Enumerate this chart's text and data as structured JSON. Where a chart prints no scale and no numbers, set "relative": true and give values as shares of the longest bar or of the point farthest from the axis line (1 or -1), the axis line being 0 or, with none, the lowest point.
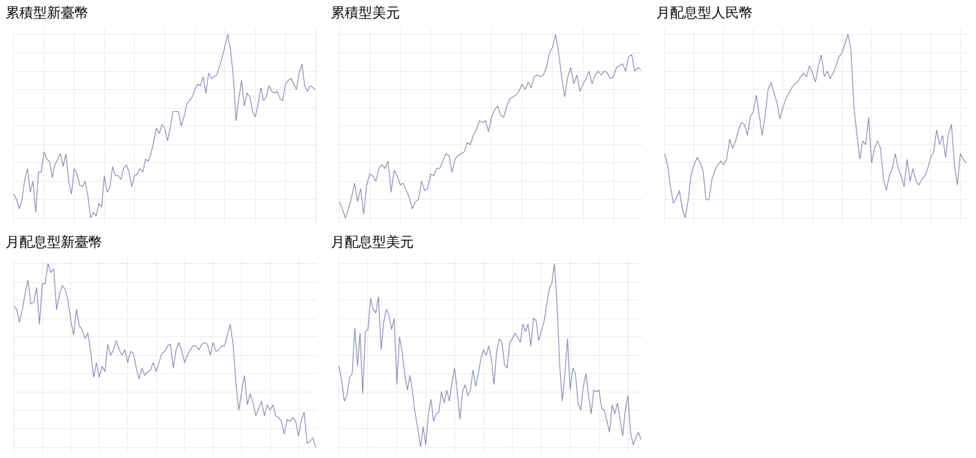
{
  "chart_data": [
    {
      "type": "line",
      "title": "累積型新臺幣",
      "relative": true,
      "grid": true,
      "marker": "none",
      "line_style": "solid",
      "categories": [
        null,
        null,
        null,
        null,
        null,
        null,
        null,
        null,
        null,
        null,
        null,
        null,
        null,
        null,
        null,
        null,
        null,
        null,
        null,
        null,
        null,
        null,
        null,
        null,
        null,
        null,
        null,
        null,
        null,
        null,
        null,
        null,
        null,
        null,
        null,
        null,
        null,
        null,
        null,
        null,
        null,
        null,
        null,
        null,
        null,
        null,
        null,
        null,
        null,
        null,
        null,
        null,
        null,
        null,
        null,
        null,
        null,
        null,
        null,
        null,
        null,
        null,
        null,
        null,
        null,
        null,
        null,
        null,
        null,
        null,
        null,
        null,
        null,
        null,
        null,
        null,
        null,
        null,
        null,
        null,
        null,
        null,
        null,
        null,
        null,
        null,
        null,
        null,
        null,
        null,
        null,
        null,
        null,
        null,
        null,
        null,
        null,
        null,
        null,
        null,
        null,
        null,
        null,
        null,
        null,
        null,
        null,
        null,
        null,
        null,
        null
      ],
      "series": [
        {
          "color": "#8a8fb5",
          "values": [
            0.13,
            0.1,
            0.05,
            0.1,
            0.21,
            0.27,
            0.14,
            0.2,
            0.03,
            0.25,
            0.25,
            0.36,
            0.32,
            0.31,
            0.22,
            0.29,
            0.32,
            0.35,
            0.28,
            0.35,
            0.2,
            0.13,
            0.27,
            0.24,
            0.18,
            0.17,
            0.2,
            0.12,
            0,
            0.03,
            0.01,
            0.08,
            0.06,
            0.23,
            0.14,
            0.17,
            0.28,
            0.23,
            0.23,
            0.21,
            0.27,
            0.29,
            0.25,
            0.17,
            0.23,
            0.24,
            0.27,
            0.25,
            0.32,
            0.31,
            0.35,
            0.42,
            0.49,
            0.46,
            0.51,
            0.49,
            0.42,
            0.49,
            0.58,
            0.58,
            0.58,
            0.5,
            0.55,
            0.62,
            0.64,
            0.66,
            0.7,
            0.73,
            0.72,
            0.77,
            0.68,
            0.79,
            0.76,
            0.77,
            0.78,
            0.83,
            0.88,
            0.94,
            1,
            0.91,
            0.77,
            0.53,
            0.65,
            0.75,
            0.61,
            0.68,
            0.66,
            0.58,
            0.55,
            0.62,
            0.71,
            0.64,
            0.66,
            0.72,
            0.69,
            0.68,
            0.69,
            0.65,
            0.64,
            0.73,
            0.75,
            0.76,
            0.73,
            0.7,
            0.79,
            0.84,
            0.72,
            0.69,
            0.72,
            0.71,
            0.7
          ]
        }
      ]
    },
    {
      "type": "line",
      "title": "累積型美元",
      "relative": true,
      "grid": true,
      "marker": "none",
      "line_style": "solid",
      "categories": [
        null,
        null,
        null,
        null,
        null,
        null,
        null,
        null,
        null,
        null,
        null,
        null,
        null,
        null,
        null,
        null,
        null,
        null,
        null,
        null,
        null,
        null,
        null,
        null,
        null,
        null,
        null,
        null,
        null,
        null,
        null,
        null,
        null,
        null,
        null,
        null,
        null,
        null,
        null,
        null,
        null,
        null,
        null,
        null,
        null,
        null,
        null,
        null,
        null,
        null,
        null,
        null,
        null,
        null,
        null,
        null,
        null,
        null,
        null,
        null,
        null,
        null,
        null,
        null,
        null,
        null,
        null,
        null,
        null,
        null,
        null,
        null,
        null,
        null,
        null,
        null,
        null,
        null,
        null,
        null,
        null,
        null,
        null,
        null,
        null,
        null,
        null,
        null,
        null,
        null,
        null,
        null,
        null,
        null,
        null,
        null,
        null,
        null,
        null,
        null
      ],
      "series": [
        {
          "color": "#8a8fb5",
          "values": [
            0.09,
            0.05,
            0,
            0.05,
            0.11,
            0.19,
            0.09,
            0.16,
            0.02,
            0.18,
            0.24,
            0.23,
            0.2,
            0.27,
            0.29,
            0.27,
            0.31,
            0.14,
            0.26,
            0.23,
            0.18,
            0.19,
            0.15,
            0.11,
            0.05,
            0.09,
            0.1,
            0.2,
            0.15,
            0.16,
            0.24,
            0.23,
            0.27,
            0.27,
            0.31,
            0.35,
            0.34,
            0.25,
            0.32,
            0.34,
            0.35,
            0.36,
            0.41,
            0.4,
            0.45,
            0.48,
            0.53,
            0.52,
            0.53,
            0.47,
            0.55,
            0.59,
            0.61,
            0.56,
            0.55,
            0.61,
            0.65,
            0.66,
            0.67,
            0.69,
            0.73,
            0.7,
            0.74,
            0.71,
            0.77,
            0.78,
            0.77,
            0.78,
            0.82,
            0.9,
            0.93,
            1,
            0.9,
            0.77,
            0.66,
            0.77,
            0.82,
            0.73,
            0.78,
            0.69,
            0.73,
            0.76,
            0.8,
            0.73,
            0.78,
            0.8,
            0.78,
            0.8,
            0.79,
            0.76,
            0.77,
            0.82,
            0.83,
            0.84,
            0.8,
            0.88,
            0.89,
            0.8,
            0.82,
            0.81
          ]
        }
      ]
    },
    {
      "type": "line",
      "title": "月配息型人民幣",
      "relative": true,
      "grid": true,
      "marker": "none",
      "line_style": "solid",
      "categories": [
        null,
        null,
        null,
        null,
        null,
        null,
        null,
        null,
        null,
        null,
        null,
        null,
        null,
        null,
        null,
        null,
        null,
        null,
        null,
        null,
        null,
        null,
        null,
        null,
        null,
        null,
        null,
        null,
        null,
        null,
        null,
        null,
        null,
        null,
        null,
        null,
        null,
        null,
        null,
        null,
        null,
        null,
        null,
        null,
        null,
        null,
        null,
        null,
        null,
        null,
        null,
        null,
        null,
        null,
        null,
        null,
        null,
        null,
        null,
        null,
        null,
        null,
        null,
        null,
        null,
        null,
        null,
        null,
        null,
        null,
        null,
        null,
        null,
        null,
        null,
        null,
        null,
        null,
        null,
        null,
        null,
        null,
        null,
        null,
        null,
        null,
        null,
        null,
        null,
        null,
        null,
        null,
        null,
        null,
        null,
        null,
        null,
        null,
        null,
        null,
        null,
        null,
        null
      ],
      "series": [
        {
          "color": "#8a8fb5",
          "values": [
            0.35,
            0.29,
            0.17,
            0.08,
            0.11,
            0.15,
            0.05,
            0,
            0.1,
            0.24,
            0.29,
            0.33,
            0.3,
            0.26,
            0.1,
            0.1,
            0.21,
            0.26,
            0.29,
            0.31,
            0.29,
            0.32,
            0.43,
            0.38,
            0.42,
            0.48,
            0.52,
            0.51,
            0.45,
            0.55,
            0.58,
            0.67,
            0.56,
            0.45,
            0.56,
            0.7,
            0.74,
            0.68,
            0.63,
            0.54,
            0.6,
            0.65,
            0.68,
            0.71,
            0.73,
            0.74,
            0.77,
            0.79,
            0.77,
            0.83,
            0.79,
            0.74,
            0.83,
            0.89,
            0.77,
            0.8,
            0.76,
            0.79,
            0.83,
            0.88,
            0.9,
            0.95,
            1,
            0.92,
            0.61,
            0.46,
            0.32,
            0.42,
            0.4,
            0.55,
            0.3,
            0.38,
            0.42,
            0.38,
            0.21,
            0.15,
            0.23,
            0.27,
            0.35,
            0.27,
            0.23,
            0.17,
            0.32,
            0.2,
            0.27,
            0.2,
            0.18,
            0.21,
            0.23,
            0.27,
            0.33,
            0.36,
            0.48,
            0.4,
            0.45,
            0.33,
            0.46,
            0.51,
            0.29,
            0.18,
            0.35,
            0.32,
            0.3
          ]
        }
      ]
    },
    {
      "type": "line",
      "title": "月配息型新臺幣",
      "relative": true,
      "grid": true,
      "marker": "none",
      "line_style": "solid",
      "categories": [
        null,
        null,
        null,
        null,
        null,
        null,
        null,
        null,
        null,
        null,
        null,
        null,
        null,
        null,
        null,
        null,
        null,
        null,
        null,
        null,
        null,
        null,
        null,
        null,
        null,
        null,
        null,
        null,
        null,
        null,
        null,
        null,
        null,
        null,
        null,
        null,
        null,
        null,
        null,
        null,
        null,
        null,
        null,
        null,
        null,
        null,
        null,
        null,
        null,
        null,
        null,
        null,
        null,
        null,
        null,
        null,
        null,
        null,
        null,
        null,
        null,
        null,
        null,
        null,
        null,
        null,
        null,
        null,
        null,
        null,
        null,
        null,
        null,
        null,
        null,
        null,
        null,
        null,
        null,
        null,
        null,
        null,
        null,
        null,
        null,
        null,
        null,
        null,
        null,
        null,
        null,
        null,
        null,
        null,
        null,
        null,
        null,
        null,
        null,
        null,
        null,
        null,
        null,
        null,
        null,
        null,
        null
      ],
      "series": [
        {
          "color": "#8a8fb5",
          "values": [
            0.77,
            0.75,
            0.68,
            0.75,
            0.84,
            0.91,
            0.78,
            0.79,
            0.87,
            0.67,
            0.89,
            0.89,
            1,
            0.95,
            0.97,
            0.75,
            0.83,
            0.88,
            0.86,
            0.8,
            0.69,
            0.61,
            0.75,
            0.66,
            0.64,
            0.59,
            0.62,
            0.52,
            0.38,
            0.46,
            0.38,
            0.44,
            0.41,
            0.56,
            0.5,
            0.53,
            0.58,
            0.53,
            0.5,
            0.53,
            0.46,
            0.52,
            0.51,
            0.43,
            0.37,
            0.43,
            0.39,
            0.41,
            0.42,
            0.46,
            0.41,
            0.46,
            0.51,
            0.52,
            0.55,
            0.56,
            0.43,
            0.53,
            0.57,
            0.52,
            0.46,
            0.5,
            0.53,
            0.55,
            0.55,
            0.53,
            0.56,
            0.57,
            0.56,
            0.5,
            0.57,
            0.52,
            0.53,
            0.55,
            0.55,
            0.61,
            0.67,
            0.56,
            0.35,
            0.2,
            0.3,
            0.39,
            0.23,
            0.29,
            0.24,
            0.17,
            0.21,
            0.25,
            0.17,
            0.23,
            0.2,
            0.23,
            0.17,
            0.16,
            0.14,
            0.07,
            0.15,
            0.14,
            0.16,
            0.14,
            0.06,
            0.15,
            0.19,
            0.02,
            0.03,
            0.05,
            0
          ]
        }
      ]
    },
    {
      "type": "line",
      "title": "月配息型美元",
      "relative": true,
      "grid": true,
      "marker": "none",
      "line_style": "solid",
      "categories": [
        null,
        null,
        null,
        null,
        null,
        null,
        null,
        null,
        null,
        null,
        null,
        null,
        null,
        null,
        null,
        null,
        null,
        null,
        null,
        null,
        null,
        null,
        null,
        null,
        null,
        null,
        null,
        null,
        null,
        null,
        null,
        null,
        null,
        null,
        null,
        null,
        null,
        null,
        null,
        null,
        null,
        null,
        null,
        null,
        null,
        null,
        null,
        null,
        null,
        null,
        null,
        null,
        null,
        null,
        null,
        null,
        null,
        null,
        null,
        null,
        null,
        null,
        null,
        null,
        null,
        null,
        null,
        null,
        null,
        null,
        null,
        null,
        null,
        null,
        null,
        null,
        null,
        null,
        null,
        null,
        null,
        null,
        null,
        null,
        null,
        null,
        null,
        null,
        null,
        null,
        null,
        null,
        null,
        null,
        null,
        null,
        null,
        null,
        null,
        null,
        null,
        null,
        null,
        null,
        null,
        null,
        null,
        null,
        null,
        null,
        null,
        null,
        null,
        null,
        null,
        null
      ],
      "series": [
        {
          "color": "#8a8fb5",
          "values": [
            0.44,
            0.36,
            0.25,
            0.28,
            0.38,
            0.4,
            0.65,
            0.44,
            0.62,
            0.29,
            0.63,
            0.64,
            0.81,
            0.75,
            0.73,
            0.82,
            0.53,
            0.68,
            0.75,
            0.72,
            0.64,
            0.7,
            0.34,
            0.6,
            0.52,
            0.4,
            0.31,
            0.39,
            0.3,
            0.18,
            0.1,
            0,
            0.11,
            0.01,
            0.18,
            0.26,
            0.14,
            0.18,
            0.19,
            0.3,
            0.24,
            0.31,
            0.25,
            0.35,
            0.43,
            0.3,
            0.15,
            0.3,
            0.34,
            0.28,
            0.31,
            0.42,
            0.33,
            0.4,
            0.48,
            0.53,
            0.5,
            0.55,
            0.48,
            0.34,
            0.52,
            0.59,
            0.57,
            0.45,
            0.43,
            0.57,
            0.59,
            0.62,
            0.6,
            0.57,
            0.67,
            0.63,
            0.67,
            0.55,
            0.7,
            0.69,
            0.58,
            0.63,
            0.68,
            0.77,
            0.86,
            0.89,
            1,
            0.78,
            0.45,
            0.25,
            0.4,
            0.59,
            0.31,
            0.43,
            0.4,
            0.24,
            0.2,
            0.33,
            0.4,
            0.28,
            0.18,
            0.31,
            0.3,
            0.31,
            0.21,
            0.2,
            0.14,
            0.08,
            0.23,
            0.18,
            0.24,
            0.15,
            0.06,
            0.2,
            0.28,
            0.08,
            0.01,
            0.05,
            0.08,
            0.04
          ]
        }
      ]
    }
  ]
}
